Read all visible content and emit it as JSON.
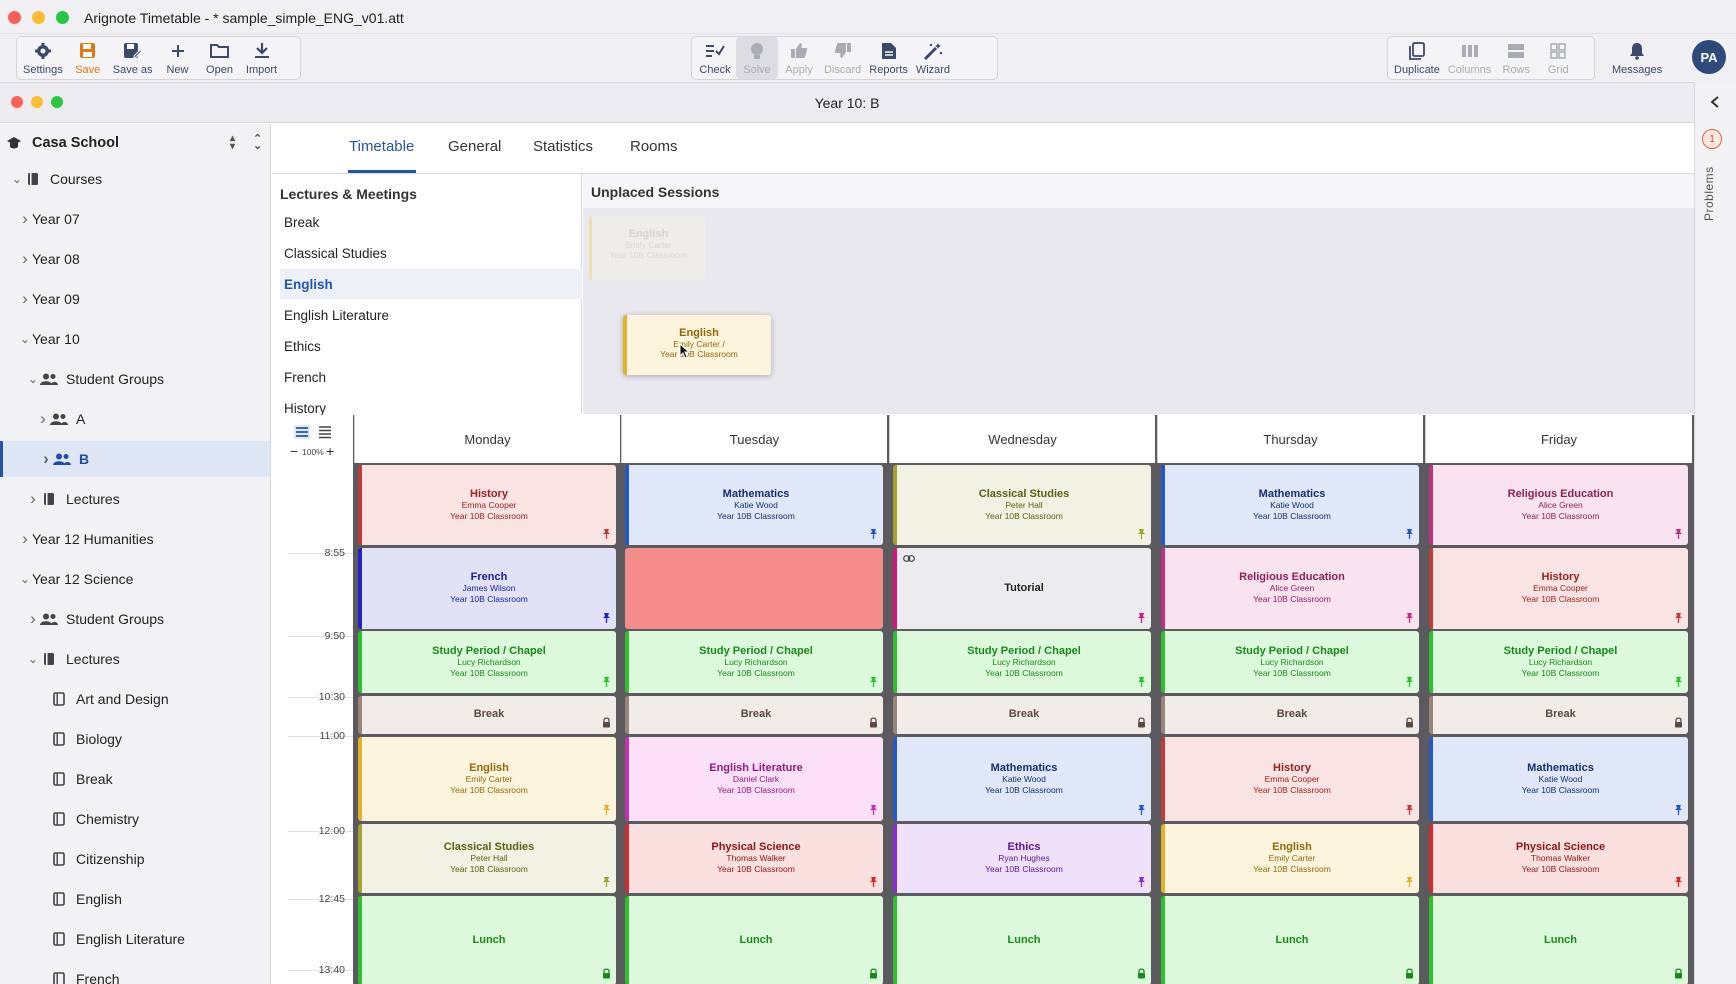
{
  "app": {
    "title": "Arignote Timetable - * sample_simple_ENG_v01.att"
  },
  "toolbar": {
    "left": [
      {
        "label": "Settings",
        "icon": "gear-icon"
      },
      {
        "label": "Save",
        "icon": "save-icon"
      },
      {
        "label": "Save as",
        "icon": "save-as-icon"
      },
      {
        "label": "New",
        "icon": "plus-icon"
      },
      {
        "label": "Open",
        "icon": "folder-icon"
      },
      {
        "label": "Import",
        "icon": "download-icon"
      }
    ],
    "center": [
      {
        "label": "Check",
        "icon": "check-icon"
      },
      {
        "label": "Solve",
        "icon": "bulb-icon"
      },
      {
        "label": "Apply",
        "icon": "thumbs-up-icon"
      },
      {
        "label": "Discard",
        "icon": "thumbs-down-icon"
      },
      {
        "label": "Reports",
        "icon": "reports-icon"
      },
      {
        "label": "Wizard",
        "icon": "wand-icon"
      }
    ],
    "right": [
      {
        "label": "Duplicate",
        "icon": "duplicate-icon"
      },
      {
        "label": "Columns",
        "icon": "columns-icon"
      },
      {
        "label": "Rows",
        "icon": "rows-icon"
      },
      {
        "label": "Grid",
        "icon": "grid-icon"
      }
    ],
    "messages": "Messages",
    "avatar": "PA"
  },
  "window": {
    "title": "Year 10: B"
  },
  "sidebar": {
    "school": "Casa School",
    "items": [
      {
        "label": "Courses",
        "level": 0,
        "arrow": "v",
        "icon": "book"
      },
      {
        "label": "Year 07",
        "level": 1,
        "arrow": ">"
      },
      {
        "label": "Year 08",
        "level": 1,
        "arrow": ">"
      },
      {
        "label": "Year 09",
        "level": 1,
        "arrow": ">"
      },
      {
        "label": "Year 10",
        "level": 1,
        "arrow": "v"
      },
      {
        "label": "Student Groups",
        "level": 2,
        "arrow": "v",
        "icon": "people"
      },
      {
        "label": "A",
        "level": 3,
        "arrow": ">",
        "icon": "people"
      },
      {
        "label": "B",
        "level": 3,
        "arrow": ">",
        "icon": "people",
        "selected": true
      },
      {
        "label": "Lectures",
        "level": 2,
        "arrow": ">",
        "icon": "book"
      },
      {
        "label": "Year 12 Humanities",
        "level": 1,
        "arrow": ">"
      },
      {
        "label": "Year 12 Science",
        "level": 1,
        "arrow": "v"
      },
      {
        "label": "Student Groups",
        "level": 2,
        "arrow": ">",
        "icon": "people"
      },
      {
        "label": "Lectures",
        "level": 2,
        "arrow": "v",
        "icon": "book"
      },
      {
        "label": "Art and Design",
        "level": 3,
        "icon": "book-outline"
      },
      {
        "label": "Biology",
        "level": 3,
        "icon": "book-outline"
      },
      {
        "label": "Break",
        "level": 3,
        "icon": "book-outline"
      },
      {
        "label": "Chemistry",
        "level": 3,
        "icon": "book-outline"
      },
      {
        "label": "Citizenship",
        "level": 3,
        "icon": "book-outline"
      },
      {
        "label": "English",
        "level": 3,
        "icon": "book-outline"
      },
      {
        "label": "English Literature",
        "level": 3,
        "icon": "book-outline"
      },
      {
        "label": "French",
        "level": 3,
        "icon": "book-outline"
      }
    ]
  },
  "tabs": [
    "Timetable",
    "General",
    "Statistics",
    "Rooms"
  ],
  "lectures": {
    "heading": "Lectures & Meetings",
    "items": [
      "Break",
      "Classical Studies",
      "English",
      "English Literature",
      "Ethics",
      "French",
      "History"
    ],
    "selected_index": 2
  },
  "unplaced": {
    "heading": "Unplaced Sessions",
    "cards": [
      {
        "subject": "English",
        "teacher": "Emily Carter",
        "room": "Year 10B Classroom",
        "state": "ghost"
      },
      {
        "subject": "English",
        "teacher": "Emily Carter /",
        "room": "Year 10B Classroom",
        "state": "dragging"
      }
    ]
  },
  "zoom": "100%",
  "days": [
    "Monday",
    "Tuesday",
    "Wednesday",
    "Thursday",
    "Friday"
  ],
  "times": [
    "8:55",
    "9:50",
    "10:30",
    "11:00",
    "12:00",
    "12:45",
    "13:40"
  ],
  "sessions": [
    [
      {
        "subject": "History",
        "teacher": "Emma Cooper",
        "room": "Year 10B Classroom",
        "color": "history",
        "mark": "pin"
      },
      {
        "subject": "French",
        "teacher": "James Wilson",
        "room": "Year 10B Classroom",
        "color": "french",
        "mark": "pin"
      },
      {
        "subject": "Study Period / Chapel",
        "teacher": "Lucy Richardson",
        "room": "Year 10B Classroom",
        "color": "study",
        "mark": "pin"
      },
      {
        "subject": "Break",
        "teacher": "",
        "room": "",
        "color": "break",
        "mark": "lock"
      },
      {
        "subject": "English",
        "teacher": "Emily Carter",
        "room": "Year 10B Classroom",
        "color": "english",
        "mark": "pin"
      },
      {
        "subject": "Classical Studies",
        "teacher": "Peter Hall",
        "room": "Year 10B Classroom",
        "color": "classical",
        "mark": "pin"
      },
      {
        "subject": "Lunch",
        "teacher": "",
        "room": "",
        "color": "lunch",
        "mark": "lock"
      }
    ],
    [
      {
        "subject": "Mathematics",
        "teacher": "Katie Wood",
        "room": "Year 10B Classroom",
        "color": "math",
        "mark": "pin"
      },
      {
        "subject": "",
        "teacher": "",
        "room": "",
        "color": "conflict",
        "mark": ""
      },
      {
        "subject": "Study Period / Chapel",
        "teacher": "Lucy Richardson",
        "room": "Year 10B Classroom",
        "color": "study",
        "mark": "pin"
      },
      {
        "subject": "Break",
        "teacher": "",
        "room": "",
        "color": "break",
        "mark": "lock"
      },
      {
        "subject": "English Literature",
        "teacher": "Daniel Clark",
        "room": "Year 10B Classroom",
        "color": "englit",
        "mark": "pin"
      },
      {
        "subject": "Physical Science",
        "teacher": "Thomas Walker",
        "room": "Year 10B Classroom",
        "color": "physci",
        "mark": "pin"
      },
      {
        "subject": "Lunch",
        "teacher": "",
        "room": "",
        "color": "lunch",
        "mark": "lock"
      }
    ],
    [
      {
        "subject": "Classical Studies",
        "teacher": "Peter Hall",
        "room": "Year 10B Classroom",
        "color": "classical",
        "mark": "pin"
      },
      {
        "subject": "Tutorial",
        "teacher": "",
        "room": "",
        "color": "tutorial",
        "mark": "pin"
      },
      {
        "subject": "Study Period / Chapel",
        "teacher": "Lucy Richardson",
        "room": "Year 10B Classroom",
        "color": "study",
        "mark": "pin"
      },
      {
        "subject": "Break",
        "teacher": "",
        "room": "",
        "color": "break",
        "mark": "lock"
      },
      {
        "subject": "Mathematics",
        "teacher": "Katie Wood",
        "room": "Year 10B Classroom",
        "color": "math",
        "mark": "pin"
      },
      {
        "subject": "Ethics",
        "teacher": "Ryan Hughes",
        "room": "Year 10B Classroom",
        "color": "ethics",
        "mark": "pin"
      },
      {
        "subject": "Lunch",
        "teacher": "",
        "room": "",
        "color": "lunch",
        "mark": "lock"
      }
    ],
    [
      {
        "subject": "Mathematics",
        "teacher": "Katie Wood",
        "room": "Year 10B Classroom",
        "color": "math",
        "mark": "pin"
      },
      {
        "subject": "Religious Education",
        "teacher": "Alice Green",
        "room": "Year 10B Classroom",
        "color": "religious",
        "mark": "pin"
      },
      {
        "subject": "Study Period / Chapel",
        "teacher": "Lucy Richardson",
        "room": "Year 10B Classroom",
        "color": "study",
        "mark": "pin"
      },
      {
        "subject": "Break",
        "teacher": "",
        "room": "",
        "color": "break",
        "mark": "lock"
      },
      {
        "subject": "History",
        "teacher": "Emma Cooper",
        "room": "Year 10B Classroom",
        "color": "history",
        "mark": "pin"
      },
      {
        "subject": "English",
        "teacher": "Emily Carter",
        "room": "Year 10B Classroom",
        "color": "english",
        "mark": "pin"
      },
      {
        "subject": "Lunch",
        "teacher": "",
        "room": "",
        "color": "lunch",
        "mark": "lock"
      }
    ],
    [
      {
        "subject": "Religious Education",
        "teacher": "Alice Green",
        "room": "Year 10B Classroom",
        "color": "religious",
        "mark": "pin"
      },
      {
        "subject": "History",
        "teacher": "Emma Cooper",
        "room": "Year 10B Classroom",
        "color": "history",
        "mark": "pin"
      },
      {
        "subject": "Study Period / Chapel",
        "teacher": "Lucy Richardson",
        "room": "Year 10B Classroom",
        "color": "study",
        "mark": "pin"
      },
      {
        "subject": "Break",
        "teacher": "",
        "room": "",
        "color": "break",
        "mark": "lock"
      },
      {
        "subject": "Mathematics",
        "teacher": "Katie Wood",
        "room": "Year 10B Classroom",
        "color": "math",
        "mark": "pin"
      },
      {
        "subject": "Physical Science",
        "teacher": "Thomas Walker",
        "room": "Year 10B Classroom",
        "color": "physci",
        "mark": "pin"
      },
      {
        "subject": "Lunch",
        "teacher": "",
        "room": "",
        "color": "lunch",
        "mark": "lock"
      }
    ]
  ],
  "colors": {
    "history": {
      "bg": "#f9e3e3",
      "bar": "#c23b3b",
      "text": "#9a2222"
    },
    "french": {
      "bg": "#e2e2f7",
      "bar": "#2323c4",
      "text": "#1c1c9c"
    },
    "study": {
      "bg": "#dcf9dc",
      "bar": "#2ec12e",
      "text": "#178a17"
    },
    "break": {
      "bg": "#f1ece8",
      "bar": "#9a857a",
      "text": "#5a4a40"
    },
    "english": {
      "bg": "#fdf4dd",
      "bar": "#e2b22b",
      "text": "#8f6a08"
    },
    "classical": {
      "bg": "#f1f1e4",
      "bar": "#a3a32d",
      "text": "#60600e"
    },
    "lunch": {
      "bg": "#dcf9dc",
      "bar": "#2ec12e",
      "text": "#178a17"
    },
    "math": {
      "bg": "#dfe7f8",
      "bar": "#2457c7",
      "text": "#14306e"
    },
    "englit": {
      "bg": "#fbe0f7",
      "bar": "#c630b3",
      "text": "#901c80"
    },
    "physci": {
      "bg": "#fbe0e0",
      "bar": "#d42a2a",
      "text": "#8e1414"
    },
    "tutorial": {
      "bg": "#ececef",
      "bar": "#d6147f",
      "text": "#222222"
    },
    "ethics": {
      "bg": "#efe1f9",
      "bar": "#8a2bd6",
      "text": "#5d1499"
    },
    "religious": {
      "bg": "#f9e3ef",
      "bar": "#c0307d",
      "text": "#8e1f58"
    },
    "conflict": {
      "bg": "#f58c8c",
      "bar": "#f58c8c",
      "text": "#222222"
    }
  },
  "problems": {
    "label": "Problems",
    "count": "1"
  }
}
